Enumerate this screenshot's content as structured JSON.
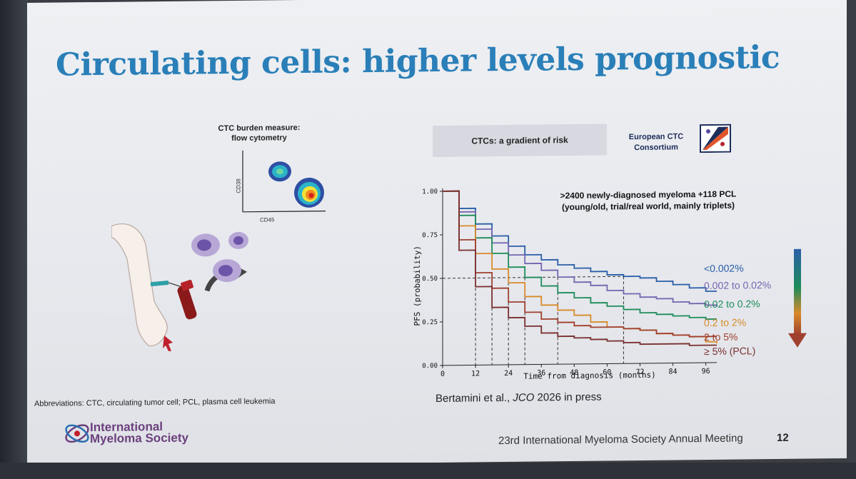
{
  "slide": {
    "title": "Circulating cells: higher levels prognostic",
    "ctc_label_line1": "CTC  burden measure:",
    "ctc_label_line2": "flow cytometry",
    "flow_x_label": "CD45",
    "flow_y_label": "CD38",
    "risk_box": "CTCs: a gradient of risk",
    "consortium_line1": "European CTC",
    "consortium_line2": "Consortium",
    "abbreviations": "Abbreviations: CTC, circulating tumor cell; PCL, plasma cell leukemia",
    "reference_prefix": "Bertamini et al., ",
    "reference_journal": "JCO",
    "reference_suffix": " 2026 in press",
    "society_line1": "International",
    "society_line2": "Myeloma Society",
    "footer": "23rd International Myeloma Society Annual Meeting",
    "page_number": "12"
  },
  "colors": {
    "title": "#2a7fb8",
    "society": "#6b3f7d"
  },
  "chart_data": {
    "type": "line",
    "annotation_line1": ">2400 newly-diagnosed myeloma +118 PCL",
    "annotation_line2": "(young/old, trial/real world, mainly triplets)",
    "xlabel": "Time from diagnosis (months)",
    "ylabel": "PFS (probability)",
    "xlim": [
      0,
      100
    ],
    "ylim": [
      0,
      1
    ],
    "xticks": [
      "0",
      "12",
      "24",
      "36",
      "48",
      "60",
      "72",
      "84",
      "96"
    ],
    "yticks": [
      "0.00",
      "0.25",
      "0.50",
      "0.75",
      "1.00"
    ],
    "median_line": 0.5,
    "series": [
      {
        "name": "<0.002%",
        "color": "#2a5fa8",
        "x": [
          0,
          6,
          12,
          18,
          24,
          30,
          36,
          42,
          48,
          54,
          60,
          66,
          72,
          78,
          84,
          90,
          96,
          100
        ],
        "y": [
          1.0,
          0.9,
          0.81,
          0.74,
          0.68,
          0.63,
          0.6,
          0.57,
          0.55,
          0.53,
          0.51,
          0.5,
          0.49,
          0.47,
          0.45,
          0.43,
          0.41,
          0.41
        ]
      },
      {
        "name": "0.002 to 0.02%",
        "color": "#7566b0",
        "x": [
          0,
          6,
          12,
          18,
          24,
          30,
          36,
          42,
          48,
          54,
          60,
          66,
          72,
          78,
          84,
          90,
          96,
          100
        ],
        "y": [
          1.0,
          0.88,
          0.78,
          0.7,
          0.63,
          0.58,
          0.54,
          0.5,
          0.47,
          0.45,
          0.42,
          0.4,
          0.38,
          0.37,
          0.35,
          0.34,
          0.33,
          0.32
        ]
      },
      {
        "name": "0.02 to 0.2%",
        "color": "#1e8c5a",
        "x": [
          0,
          6,
          12,
          18,
          24,
          30,
          36,
          42,
          48,
          54,
          60,
          66,
          72,
          78,
          84,
          90,
          96,
          100
        ],
        "y": [
          1.0,
          0.86,
          0.73,
          0.64,
          0.56,
          0.5,
          0.45,
          0.41,
          0.38,
          0.35,
          0.33,
          0.31,
          0.29,
          0.28,
          0.27,
          0.26,
          0.25,
          0.25
        ]
      },
      {
        "name": "0.2 to 2%",
        "color": "#d98a2a",
        "x": [
          0,
          6,
          12,
          18,
          24,
          30,
          36,
          42,
          48,
          54,
          60,
          66,
          72,
          78,
          84,
          90,
          96,
          100
        ],
        "y": [
          1.0,
          0.8,
          0.64,
          0.55,
          0.47,
          0.39,
          0.34,
          0.31,
          0.28,
          0.24,
          0.21,
          0.2,
          0.19,
          0.17,
          0.16,
          0.15,
          0.12,
          0.11
        ]
      },
      {
        "name": "2 to 5%",
        "color": "#a0402e",
        "x": [
          0,
          6,
          12,
          18,
          24,
          30,
          36,
          42,
          48,
          54,
          60,
          66,
          72,
          78,
          84,
          90,
          96,
          100
        ],
        "y": [
          1.0,
          0.72,
          0.53,
          0.44,
          0.36,
          0.3,
          0.26,
          0.24,
          0.22,
          0.21,
          0.21,
          0.2,
          0.19,
          0.17,
          0.16,
          0.15,
          0.15,
          0.15
        ]
      },
      {
        "name": "≥ 5% (PCL)",
        "color": "#7a2f2f",
        "x": [
          0,
          6,
          12,
          18,
          24,
          30,
          36,
          42,
          48,
          54,
          60,
          66,
          72,
          78,
          84,
          90,
          96,
          100
        ],
        "y": [
          1.0,
          0.66,
          0.45,
          0.33,
          0.27,
          0.22,
          0.18,
          0.16,
          0.15,
          0.14,
          0.13,
          0.12,
          0.11,
          0.11,
          0.11,
          0.1,
          0.1,
          0.1
        ]
      }
    ]
  }
}
